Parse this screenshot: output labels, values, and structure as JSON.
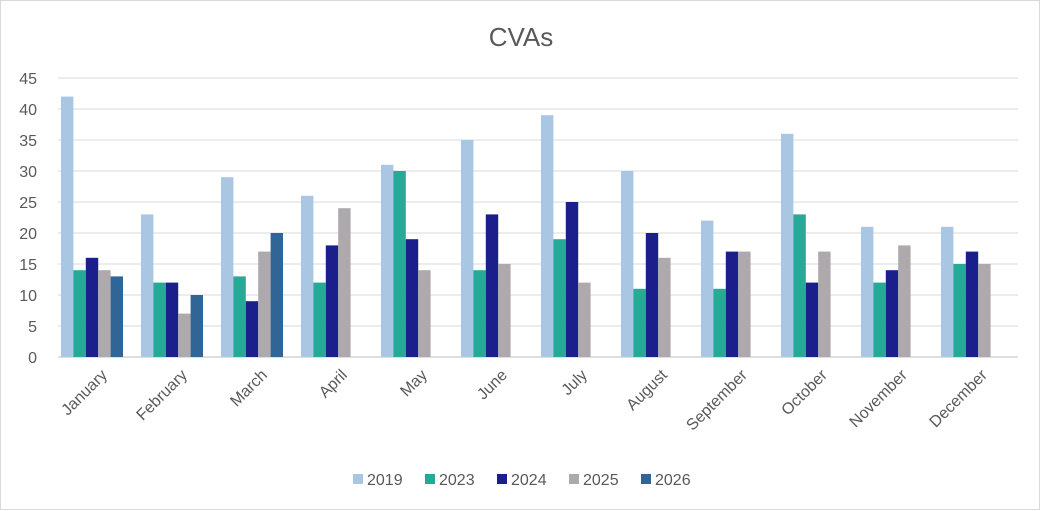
{
  "chart_data": {
    "type": "bar",
    "title": "CVAs",
    "xlabel": "",
    "ylabel": "",
    "ylim": [
      0,
      45
    ],
    "yticks": [
      0,
      5,
      10,
      15,
      20,
      25,
      30,
      35,
      40,
      45
    ],
    "grid": true,
    "legend_position": "bottom",
    "categories": [
      "January",
      "February",
      "March",
      "April",
      "May",
      "June",
      "July",
      "August",
      "September",
      "October",
      "November",
      "December"
    ],
    "series": [
      {
        "name": "2019",
        "color": "#a9c6e2",
        "values": [
          42,
          23,
          29,
          26,
          31,
          35,
          39,
          30,
          22,
          36,
          21,
          21
        ]
      },
      {
        "name": "2023",
        "color": "#26a996",
        "values": [
          14,
          12,
          13,
          12,
          30,
          14,
          19,
          11,
          11,
          23,
          12,
          15
        ]
      },
      {
        "name": "2024",
        "color": "#1a1f8c",
        "values": [
          16,
          12,
          9,
          18,
          19,
          23,
          25,
          20,
          17,
          12,
          14,
          17
        ]
      },
      {
        "name": "2025",
        "color": "#ada9ac",
        "values": [
          14,
          7,
          17,
          24,
          14,
          15,
          12,
          16,
          17,
          17,
          18,
          15
        ]
      },
      {
        "name": "2026",
        "color": "#2f6697",
        "values": [
          13,
          10,
          20,
          null,
          null,
          null,
          null,
          null,
          null,
          null,
          null,
          null
        ]
      }
    ]
  }
}
